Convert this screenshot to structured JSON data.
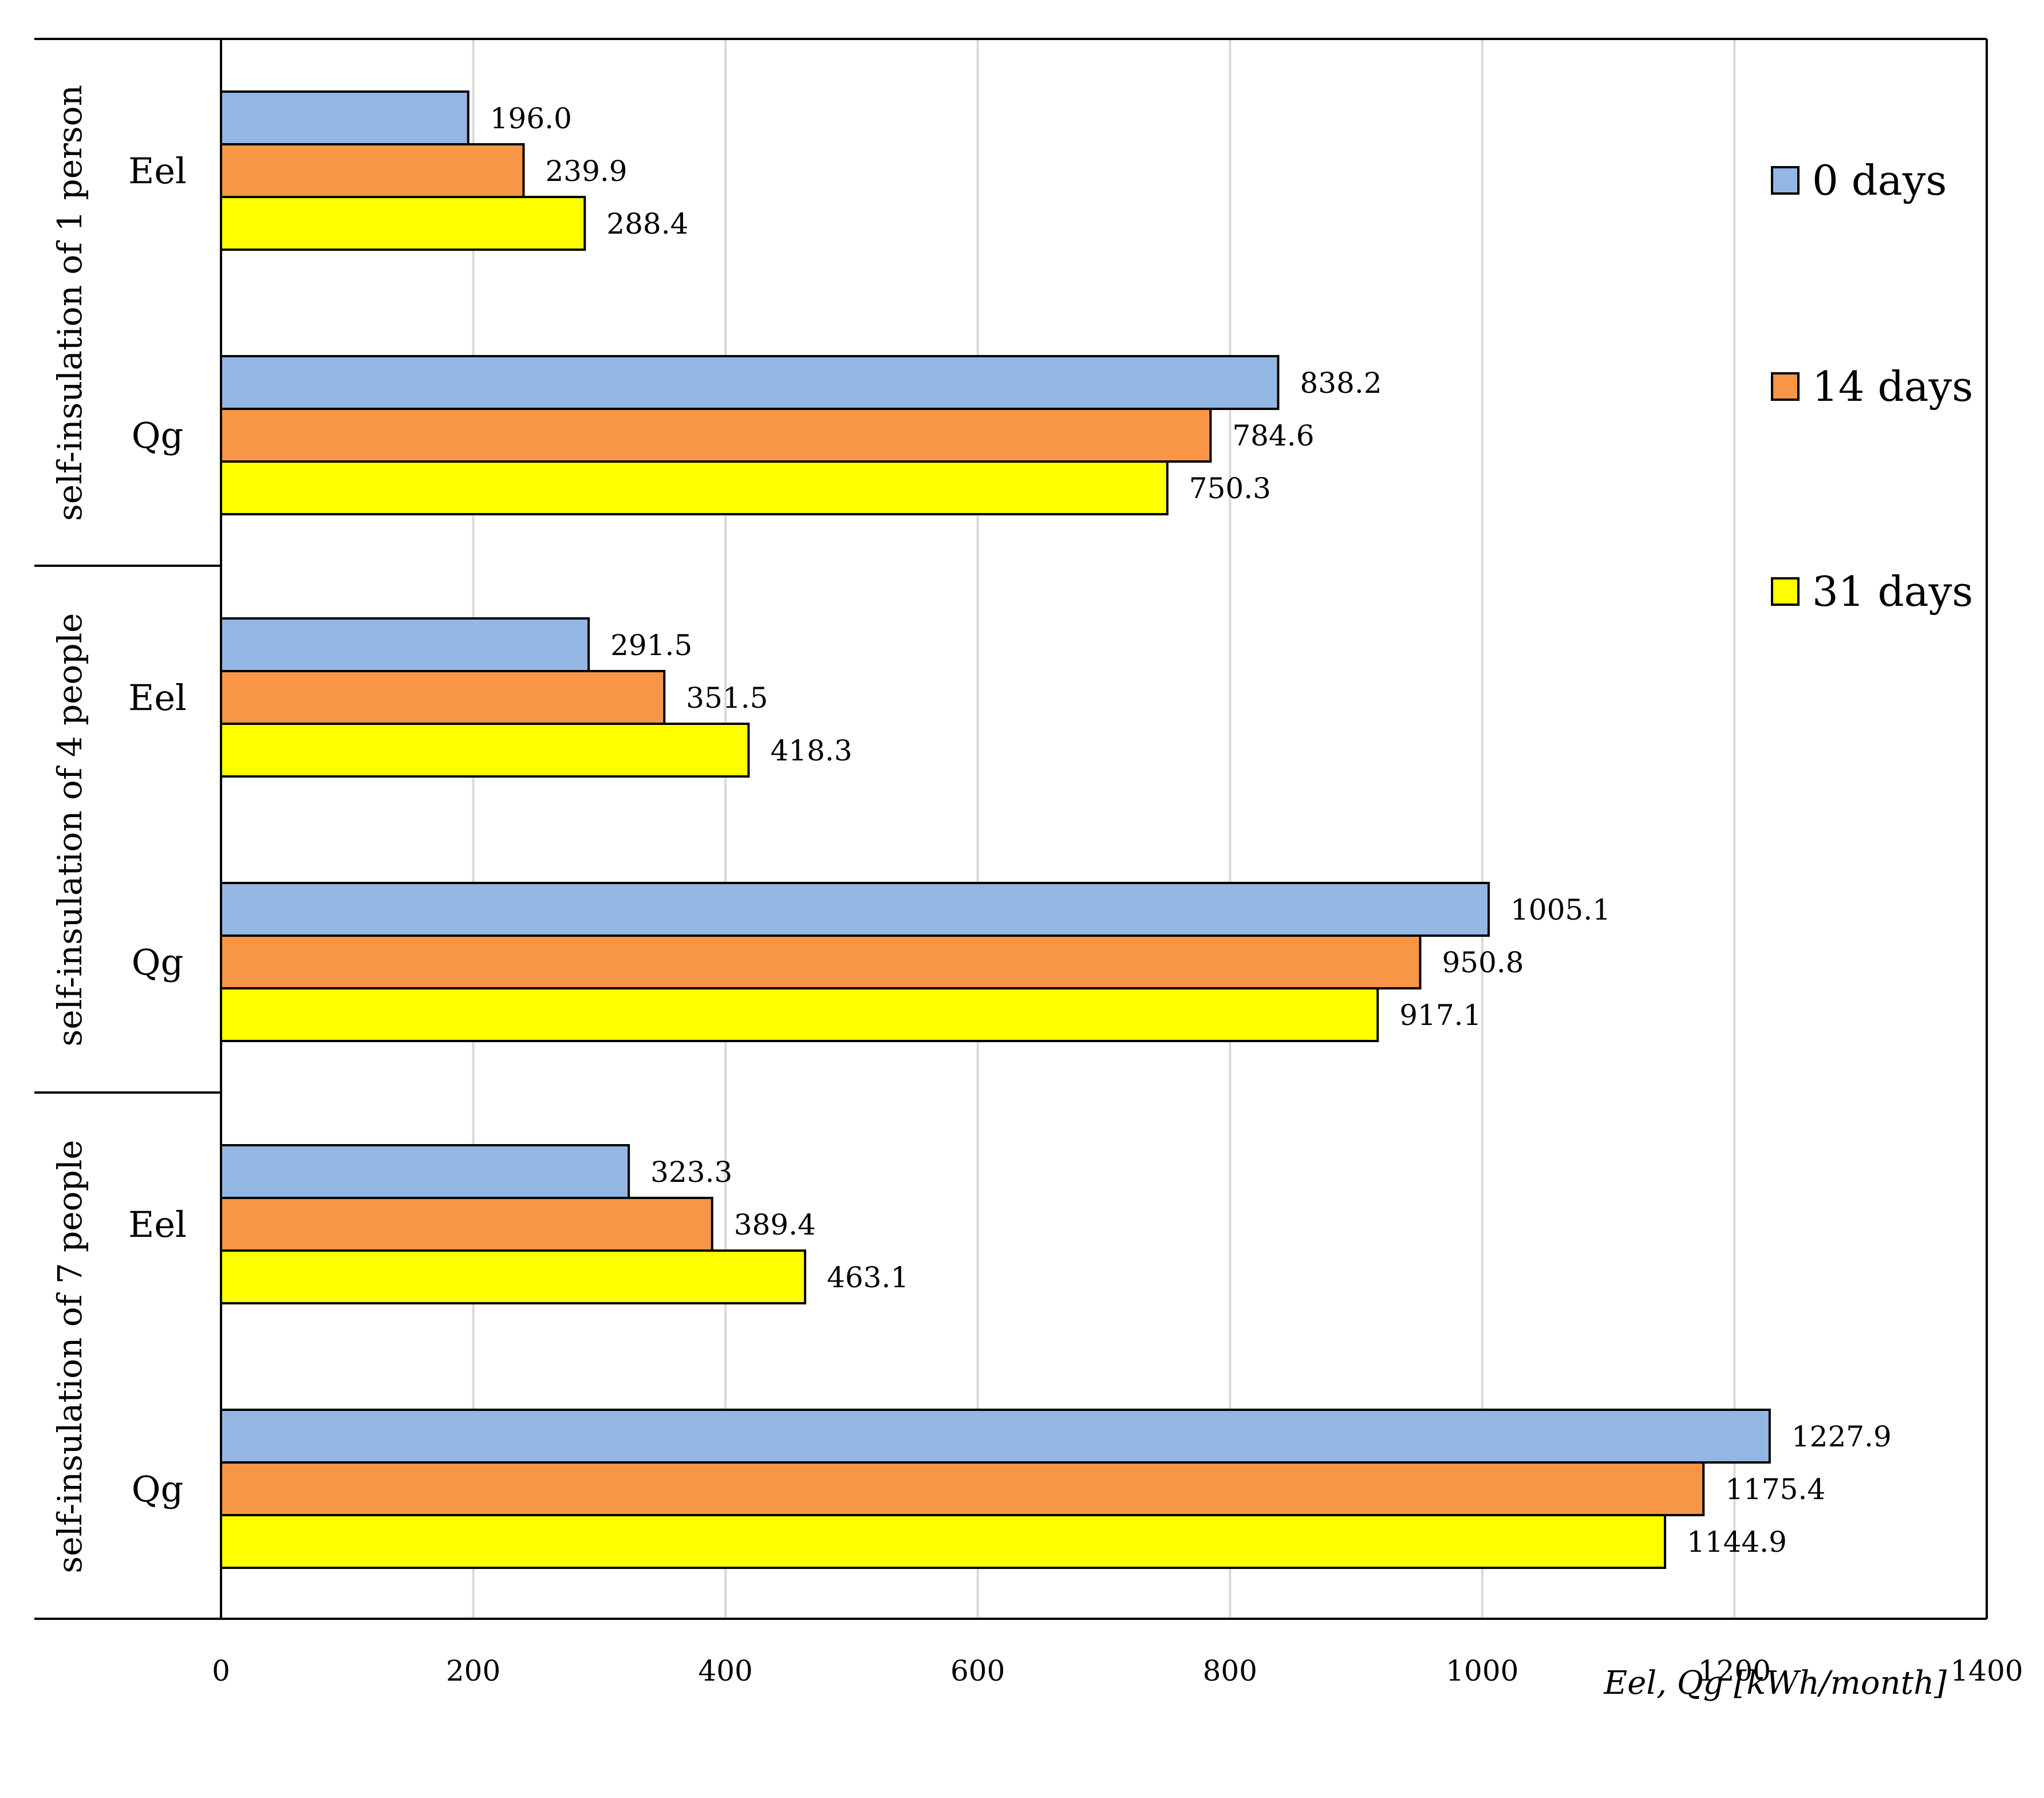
{
  "chart_data": {
    "type": "bar",
    "orientation": "horizontal",
    "xlabel": "Eel, Qg  [kWh/month]",
    "xlim": [
      0,
      1400
    ],
    "xticks": [
      0,
      200,
      400,
      600,
      800,
      1000,
      1200,
      1400
    ],
    "grid": "vertical",
    "legend_position": "right",
    "series": [
      {
        "name": "0 days",
        "color": "#93b6e3"
      },
      {
        "name": "14 days",
        "color": "#f79646"
      },
      {
        "name": "31 days",
        "color": "#ffff00"
      }
    ],
    "groups": [
      {
        "label": "self-insulation of 1 person",
        "categories": [
          {
            "label": "Eel",
            "values": [
              196.0,
              239.9,
              288.4
            ],
            "value_labels": [
              "196.0",
              "239.9",
              "288.4"
            ]
          },
          {
            "label": "Qg",
            "values": [
              838.2,
              784.6,
              750.3
            ],
            "value_labels": [
              "838.2",
              "784.6",
              "750.3"
            ]
          }
        ]
      },
      {
        "label": "self-insulation of 4 people",
        "categories": [
          {
            "label": "Eel",
            "values": [
              291.5,
              351.5,
              418.3
            ],
            "value_labels": [
              "291.5",
              "351.5",
              "418.3"
            ]
          },
          {
            "label": "Qg",
            "values": [
              1005.1,
              950.8,
              917.1
            ],
            "value_labels": [
              "1005.1",
              "950.8",
              "917.1"
            ]
          }
        ]
      },
      {
        "label": "self-insulation of 7 people",
        "categories": [
          {
            "label": "Eel",
            "values": [
              323.3,
              389.4,
              463.1
            ],
            "value_labels": [
              "323.3",
              "389.4",
              "463.1"
            ]
          },
          {
            "label": "Qg",
            "values": [
              1227.9,
              1175.4,
              1144.9
            ],
            "value_labels": [
              "1227.9",
              "1175.4",
              "1144.9"
            ]
          }
        ]
      }
    ]
  }
}
